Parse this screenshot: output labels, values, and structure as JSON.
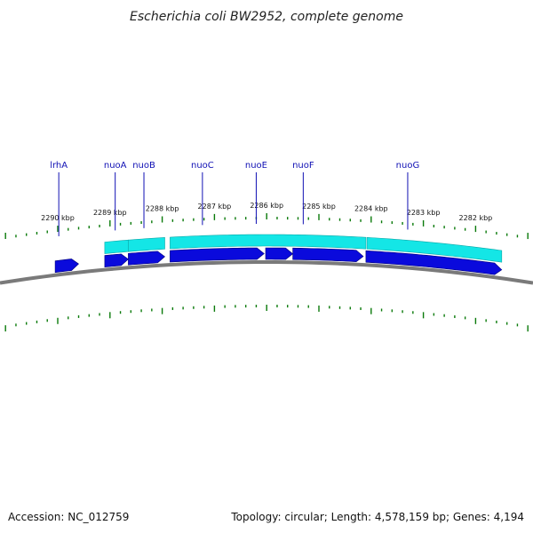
{
  "title": "Escherichia coli BW2952, complete genome",
  "footer": {
    "accession": "Accession: NC_012759",
    "summary": "Topology: circular; Length: 4,578,159 bp; Genes: 4,194"
  },
  "genes": [
    {
      "name": "lrhA",
      "start_kbp": 2290.05,
      "end_kbp": 2289.6,
      "strand": "reverse"
    },
    {
      "name": "nuoA",
      "start_kbp": 2289.1,
      "end_kbp": 2288.65,
      "strand": "reverse"
    },
    {
      "name": "nuoB",
      "start_kbp": 2288.65,
      "end_kbp": 2287.95,
      "strand": "reverse"
    },
    {
      "name": "nuoC",
      "start_kbp": 2287.85,
      "end_kbp": 2286.05,
      "strand": "reverse"
    },
    {
      "name": "nuoE",
      "start_kbp": 2286.02,
      "end_kbp": 2285.5,
      "strand": "reverse"
    },
    {
      "name": "nuoF",
      "start_kbp": 2285.5,
      "end_kbp": 2284.15,
      "strand": "reverse"
    },
    {
      "name": "nuoG",
      "start_kbp": 2284.1,
      "end_kbp": 2281.5,
      "strand": "reverse"
    }
  ],
  "cds_bands": [
    {
      "start_kbp": 2289.1,
      "end_kbp": 2288.65
    },
    {
      "start_kbp": 2288.65,
      "end_kbp": 2287.95
    },
    {
      "start_kbp": 2287.85,
      "end_kbp": 2284.1
    },
    {
      "start_kbp": 2284.08,
      "end_kbp": 2281.5
    }
  ],
  "gene_labels": [
    {
      "text": "lrhA",
      "kbp": 2289.98
    },
    {
      "text": "nuoA",
      "kbp": 2288.9
    },
    {
      "text": "nuoB",
      "kbp": 2288.35
    },
    {
      "text": "nuoC",
      "kbp": 2287.23
    },
    {
      "text": "nuoE",
      "kbp": 2286.2
    },
    {
      "text": "nuoF",
      "kbp": 2285.3
    },
    {
      "text": "nuoG",
      "kbp": 2283.3
    }
  ],
  "scale": {
    "major_ticks_kbp": [
      2290,
      2289,
      2288,
      2287,
      2286,
      2285,
      2284,
      2283,
      2282
    ],
    "tick_labels": [
      "2290 kbp",
      "2289 kbp",
      "2288 kbp",
      "2287 kbp",
      "2286 kbp",
      "2285 kbp",
      "2284 kbp",
      "2283 kbp",
      "2282 kbp"
    ],
    "minor_step_kbp": 0.2
  },
  "colors": {
    "gene_arrow": "#0a0adc",
    "cds_band": "#14e6e6",
    "backbone": "#7a7a7a",
    "tick": "#0a7a0a",
    "label_line": "#1010b4"
  }
}
